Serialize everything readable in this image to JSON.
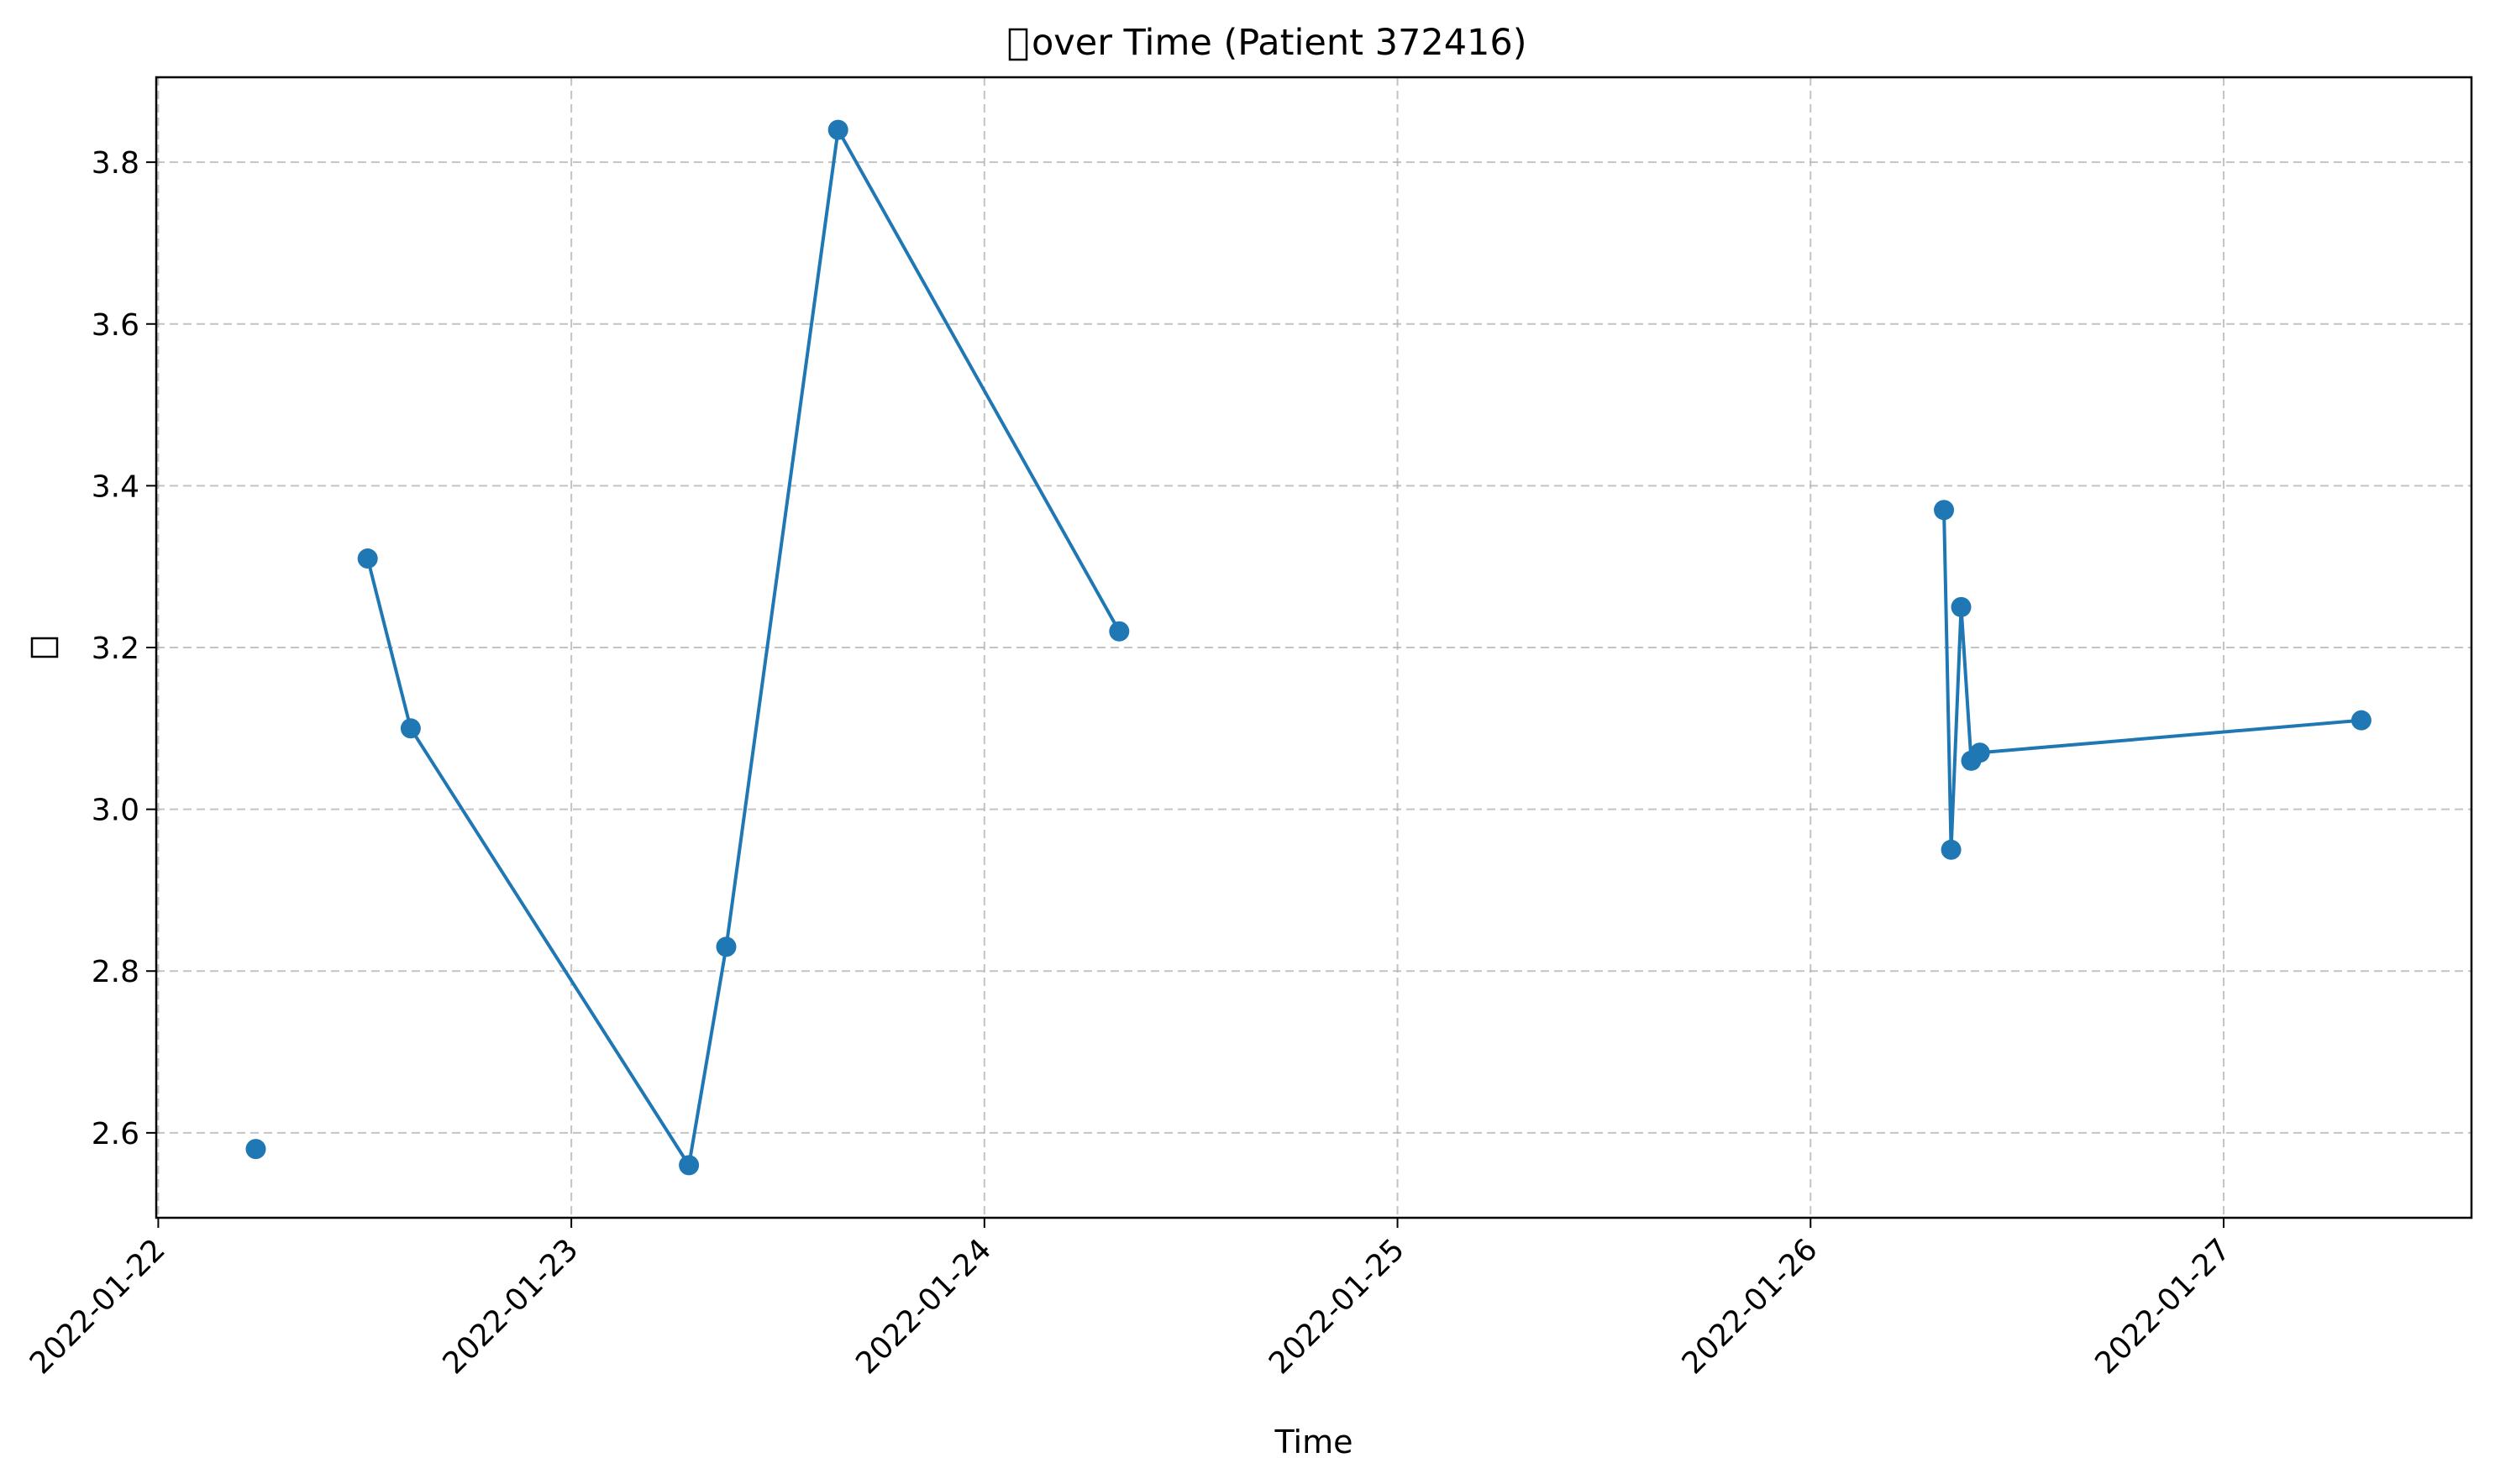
{
  "chart_data": {
    "type": "line",
    "title_suffix": " over Time (Patient 372416)",
    "xlabel": "Time",
    "ylabel": "",
    "xlim": [
      "2022-01-21T23:53",
      "2022-01-27T14:24"
    ],
    "ylim": [
      2.495,
      3.905
    ],
    "x_ticks": [
      "2022-01-22",
      "2022-01-23",
      "2022-01-24",
      "2022-01-25",
      "2022-01-26",
      "2022-01-27"
    ],
    "y_ticks": [
      "2.6",
      "2.8",
      "3.0",
      "3.2",
      "3.4",
      "3.6",
      "3.8"
    ],
    "grid": true,
    "colors": {
      "series": "#1f77b4",
      "grid": "#b0b0b0",
      "axis": "#000000"
    },
    "series": [
      {
        "points": [
          {
            "x": "2022-01-22T05:40",
            "y": 2.58
          },
          {
            "x": null,
            "y": null
          },
          {
            "x": "2022-01-22T12:10",
            "y": 3.31
          },
          {
            "x": "2022-01-22T14:40",
            "y": 3.1
          },
          {
            "x": "2022-01-23T06:50",
            "y": 2.56
          },
          {
            "x": "2022-01-23T09:00",
            "y": 2.83
          },
          {
            "x": "2022-01-23T15:30",
            "y": 3.84
          },
          {
            "x": "2022-01-24T07:50",
            "y": 3.22
          },
          {
            "x": null,
            "y": null
          },
          {
            "x": "2022-01-26T07:45",
            "y": 3.37
          },
          {
            "x": "2022-01-26T08:10",
            "y": 2.95
          },
          {
            "x": "2022-01-26T08:45",
            "y": 3.25
          },
          {
            "x": "2022-01-26T09:20",
            "y": 3.06
          },
          {
            "x": "2022-01-26T09:50",
            "y": 3.07
          },
          {
            "x": "2022-01-27T08:00",
            "y": 3.11
          }
        ]
      }
    ]
  }
}
